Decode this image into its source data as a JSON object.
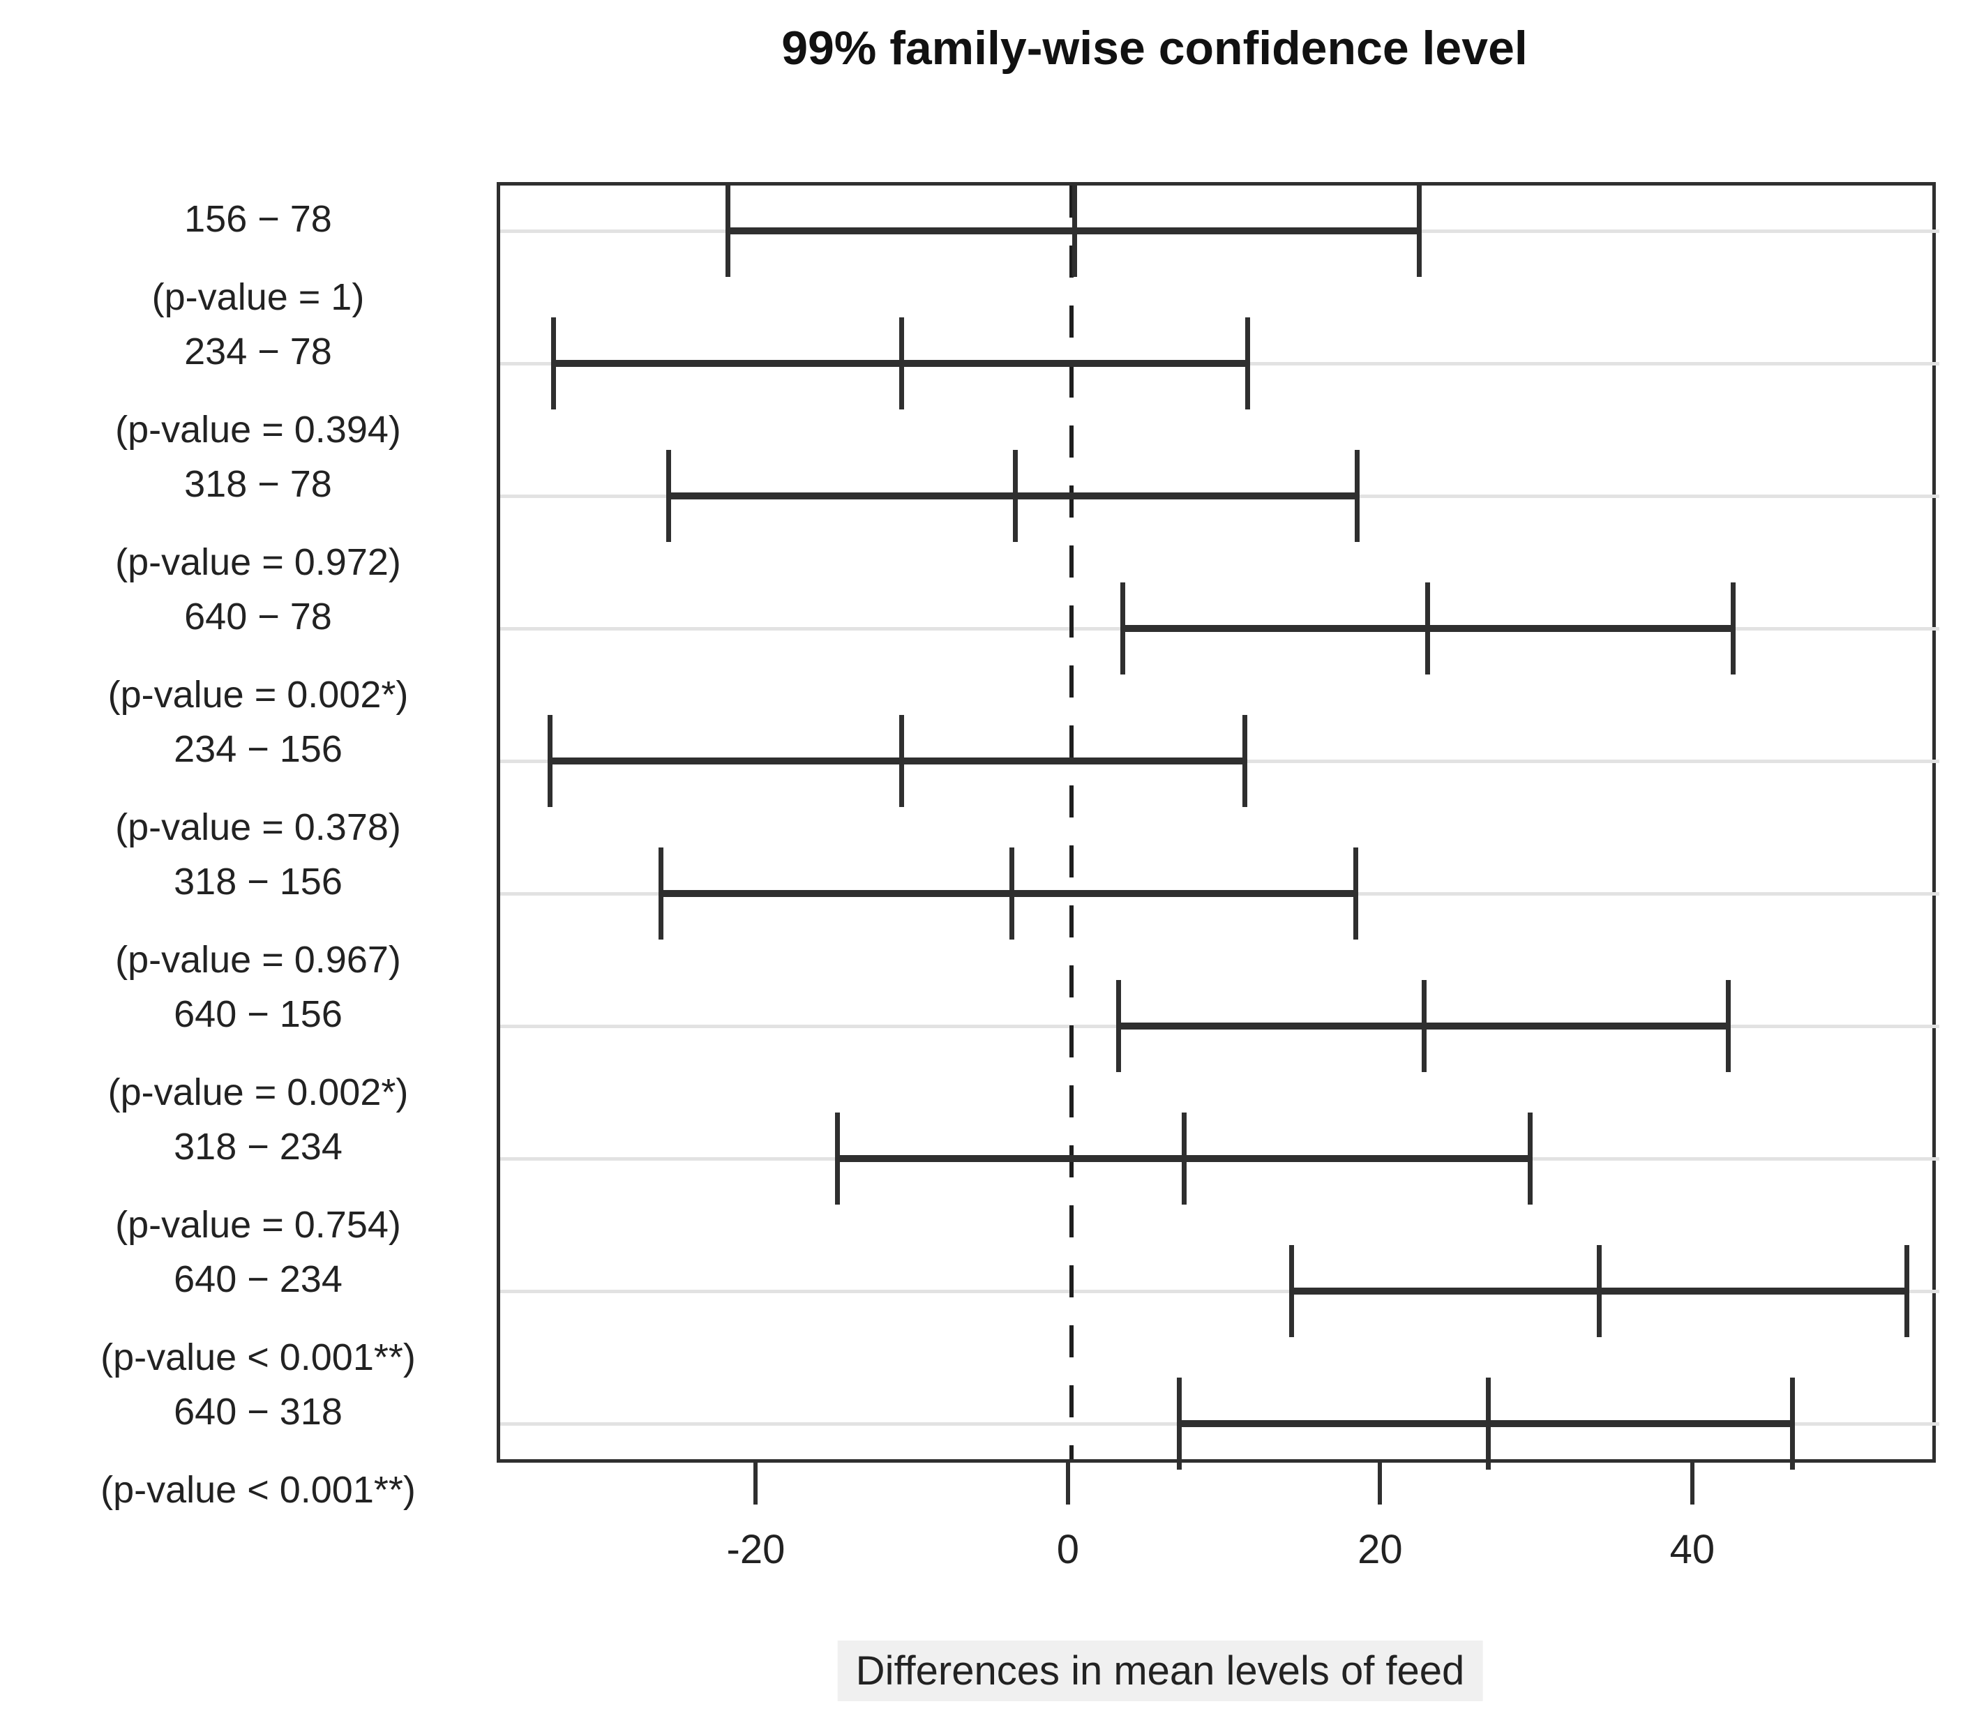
{
  "title": "99% family-wise confidence level",
  "x_axis": {
    "label": "Differences in mean levels of feed",
    "tick_labels": [
      "-20",
      "0",
      "20",
      "40"
    ],
    "tick_values": [
      -20,
      0,
      20,
      40
    ]
  },
  "chart_data": {
    "type": "errorbar",
    "title": "99% family-wise confidence level",
    "xlabel": "Differences in mean levels of feed",
    "ylabel": "",
    "xlim": [
      -36.6,
      55.6
    ],
    "x_ticks": [
      -20,
      0,
      20,
      40
    ],
    "grid": "light horizontal gridline at each comparison row",
    "zero_reference_line": {
      "x": 0,
      "style": "dashed"
    },
    "comparisons": [
      {
        "pair": "156 − 78",
        "p_label": "(p-value = 1)",
        "lower": -22.0,
        "estimate": 0.2,
        "upper": 22.3
      },
      {
        "pair": "234 − 78",
        "p_label": "(p-value = 0.394)",
        "lower": -33.2,
        "estimate": -10.9,
        "upper": 11.3
      },
      {
        "pair": "318 − 78",
        "p_label": "(p-value = 0.972)",
        "lower": -25.8,
        "estimate": -3.6,
        "upper": 18.3
      },
      {
        "pair": "640 − 78",
        "p_label": "(p-value = 0.002*)",
        "lower": 3.3,
        "estimate": 22.8,
        "upper": 42.4
      },
      {
        "pair": "234 − 156",
        "p_label": "(p-value = 0.378)",
        "lower": -33.4,
        "estimate": -10.9,
        "upper": 11.1
      },
      {
        "pair": "318 − 156",
        "p_label": "(p-value = 0.967)",
        "lower": -26.3,
        "estimate": -3.8,
        "upper": 18.2
      },
      {
        "pair": "640 − 156",
        "p_label": "(p-value = 0.002*)",
        "lower": 3.0,
        "estimate": 22.6,
        "upper": 42.1
      },
      {
        "pair": "318 − 234",
        "p_label": "(p-value = 0.754)",
        "lower": -15.0,
        "estimate": 7.2,
        "upper": 29.4
      },
      {
        "pair": "640 − 234",
        "p_label": "(p-value < 0.001**)",
        "lower": 14.1,
        "estimate": 33.8,
        "upper": 53.5
      },
      {
        "pair": "640 − 318",
        "p_label": "(p-value < 0.001**)",
        "lower": 6.9,
        "estimate": 26.7,
        "upper": 46.2
      }
    ]
  },
  "colors": {
    "line": "#2f2f2f",
    "grid": "#e2e2e2",
    "text": "#222222",
    "xlabel_background": "#f0f0f0"
  }
}
